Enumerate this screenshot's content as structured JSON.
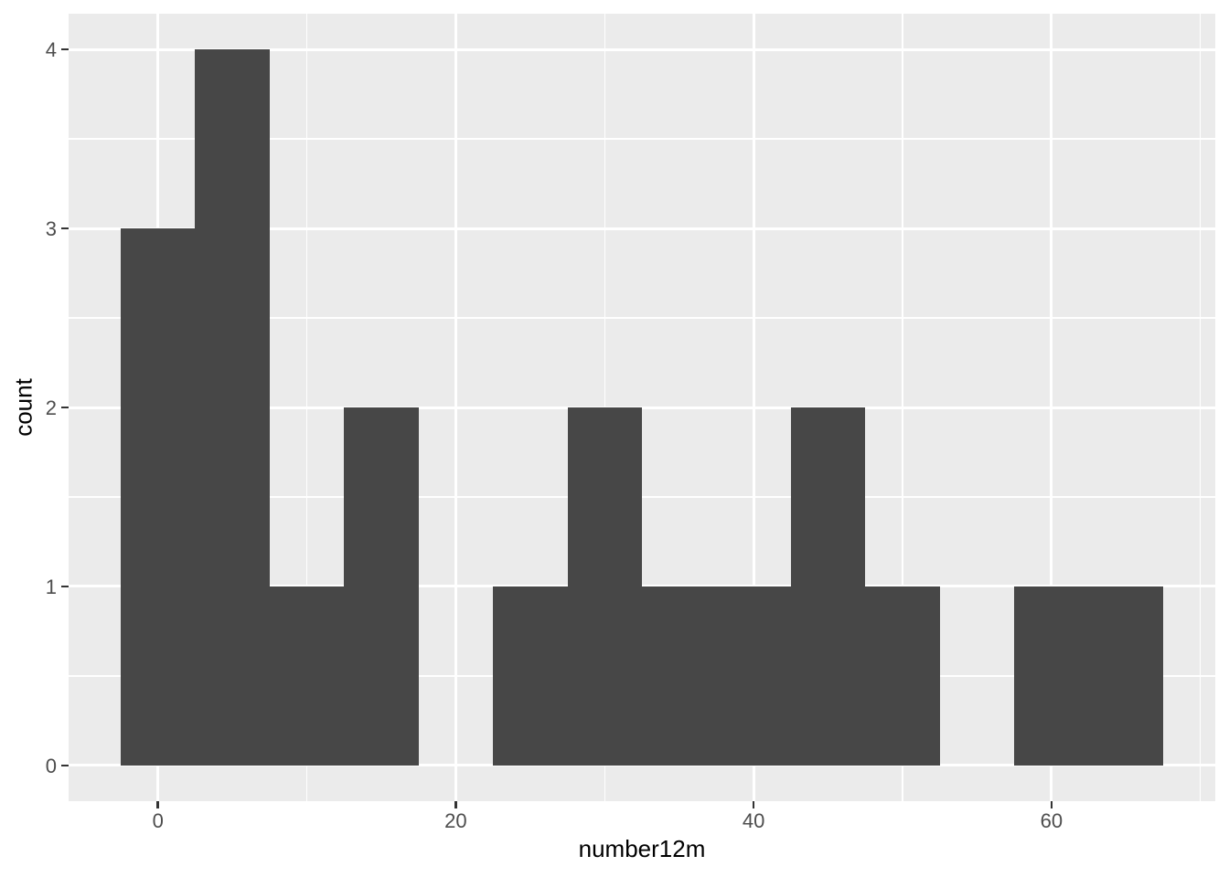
{
  "chart_data": {
    "type": "bar",
    "subtype": "histogram",
    "title": "",
    "xlabel": "number12m",
    "ylabel": "count",
    "bin_width": 5,
    "bin_edges": [
      -2.5,
      2.5,
      7.5,
      12.5,
      17.5,
      22.5,
      27.5,
      32.5,
      37.5,
      42.5,
      47.5,
      52.5,
      57.5,
      62.5,
      67.5
    ],
    "counts": [
      3,
      4,
      1,
      2,
      0,
      1,
      2,
      1,
      1,
      2,
      1,
      0,
      1,
      1
    ],
    "x_ticks": [
      0,
      20,
      40,
      60
    ],
    "y_ticks": [
      0,
      1,
      2,
      3,
      4
    ],
    "x_minor_ticks": [
      10,
      30,
      50,
      70
    ],
    "y_minor_ticks": [
      0.5,
      1.5,
      2.5,
      3.5
    ],
    "xlim": [
      -6,
      71
    ],
    "ylim": [
      -0.2,
      4.2
    ],
    "grid": true,
    "legend_position": "none",
    "colors": {
      "bar_fill": "#474747",
      "panel_background": "#EBEBEB",
      "grid_major": "#FFFFFF",
      "grid_minor": "#FFFFFF",
      "tick_mark": "#333333",
      "tick_label": "#4D4D4D",
      "axis_title": "#000000",
      "outer_background": "#FFFFFF"
    }
  }
}
